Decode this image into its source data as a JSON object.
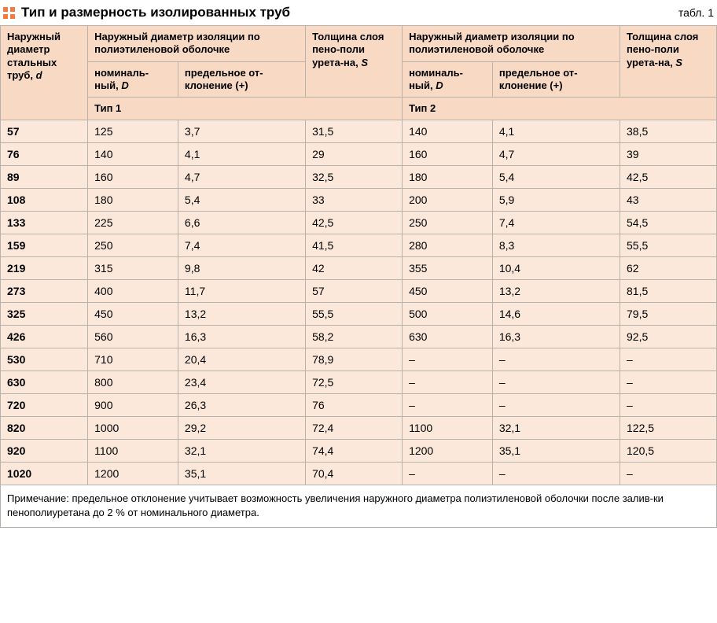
{
  "title": "Тип и размерность изолированных труб",
  "table_label": "табл. 1",
  "colors": {
    "accent": "#f47b3e",
    "header_bg": "#f8d9c3",
    "cell_bg": "#fbe8db",
    "border": "#b8b2ad"
  },
  "headers": {
    "steel_d": "Наружный диаметр стальных труб, ",
    "steel_d_var": "d",
    "outer_iso": "Наружный диаметр изоляции по полиэтиленовой оболочке",
    "nominal": "номиналь-ный, ",
    "nominal_var": "D",
    "deviation": "предельное от-клонение (+)",
    "foam_s": "Толщина слоя пено-поли урета-на, ",
    "foam_s2": "Толщина слоя пено-поли урета-на, ",
    "foam_s_var": "S",
    "type1": "Тип 1",
    "type2": "Тип 2"
  },
  "rows": [
    {
      "d": "57",
      "n1": "125",
      "dv1": "3,7",
      "s1": "31,5",
      "n2": "140",
      "dv2": "4,1",
      "s2": "38,5"
    },
    {
      "d": "76",
      "n1": "140",
      "dv1": "4,1",
      "s1": "29",
      "n2": "160",
      "dv2": "4,7",
      "s2": "39"
    },
    {
      "d": "89",
      "n1": "160",
      "dv1": "4,7",
      "s1": "32,5",
      "n2": "180",
      "dv2": "5,4",
      "s2": "42,5"
    },
    {
      "d": "108",
      "n1": "180",
      "dv1": "5,4",
      "s1": "33",
      "n2": "200",
      "dv2": "5,9",
      "s2": "43"
    },
    {
      "d": "133",
      "n1": "225",
      "dv1": "6,6",
      "s1": "42,5",
      "n2": "250",
      "dv2": "7,4",
      "s2": "54,5"
    },
    {
      "d": "159",
      "n1": "250",
      "dv1": "7,4",
      "s1": "41,5",
      "n2": "280",
      "dv2": "8,3",
      "s2": "55,5"
    },
    {
      "d": "219",
      "n1": "315",
      "dv1": "9,8",
      "s1": "42",
      "n2": "355",
      "dv2": "10,4",
      "s2": "62"
    },
    {
      "d": "273",
      "n1": "400",
      "dv1": "11,7",
      "s1": "57",
      "n2": "450",
      "dv2": "13,2",
      "s2": "81,5"
    },
    {
      "d": "325",
      "n1": "450",
      "dv1": "13,2",
      "s1": "55,5",
      "n2": "500",
      "dv2": "14,6",
      "s2": "79,5"
    },
    {
      "d": "426",
      "n1": "560",
      "dv1": "16,3",
      "s1": "58,2",
      "n2": "630",
      "dv2": "16,3",
      "s2": "92,5"
    },
    {
      "d": "530",
      "n1": "710",
      "dv1": "20,4",
      "s1": "78,9",
      "n2": "–",
      "dv2": "–",
      "s2": "–"
    },
    {
      "d": "630",
      "n1": "800",
      "dv1": "23,4",
      "s1": "72,5",
      "n2": "–",
      "dv2": "–",
      "s2": "–"
    },
    {
      "d": "720",
      "n1": "900",
      "dv1": "26,3",
      "s1": "76",
      "n2": "–",
      "dv2": "–",
      "s2": "–"
    },
    {
      "d": "820",
      "n1": "1000",
      "dv1": "29,2",
      "s1": "72,4",
      "n2": "1100",
      "dv2": "32,1",
      "s2": "122,5"
    },
    {
      "d": "920",
      "n1": "1100",
      "dv1": "32,1",
      "s1": "74,4",
      "n2": "1200",
      "dv2": "35,1",
      "s2": "120,5"
    },
    {
      "d": "1020",
      "n1": "1200",
      "dv1": "35,1",
      "s1": "70,4",
      "n2": "–",
      "dv2": "–",
      "s2": "–"
    }
  ],
  "footnote": "Примечание: предельное отклонение учитывает возможность увеличения наружного диаметра полиэтиленовой оболочки после залив-ки пенополиуретана до 2 % от номинального диаметра."
}
